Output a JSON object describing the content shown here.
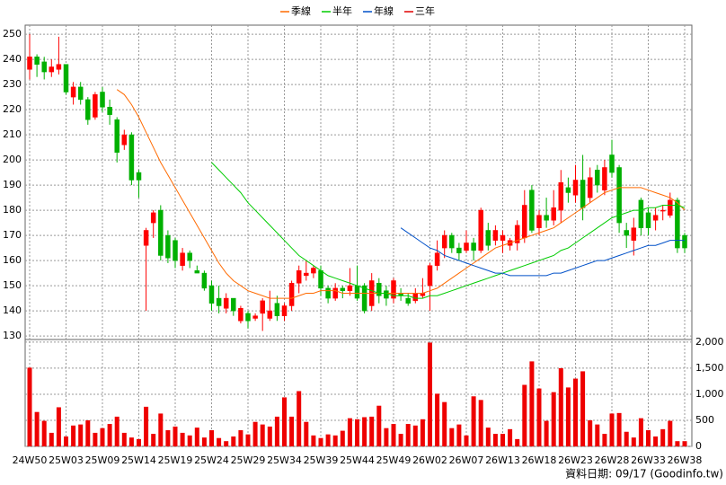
{
  "chart_data": [
    {
      "type": "candlestick",
      "open": [
        236,
        241,
        239,
        235,
        236,
        238,
        225,
        229,
        224,
        217,
        227,
        221,
        216,
        206,
        210,
        195,
        166,
        175,
        180,
        170,
        168,
        158,
        163,
        156,
        155,
        150,
        145,
        141,
        145,
        136,
        139,
        137,
        139,
        137,
        143,
        138,
        142,
        151,
        154,
        155,
        156,
        149,
        145,
        149,
        148,
        150,
        150,
        142,
        151,
        148,
        145,
        147,
        145,
        144,
        146,
        150,
        158,
        165,
        170,
        165,
        164,
        167,
        164,
        172,
        168,
        168,
        166,
        167,
        169,
        188,
        173,
        178,
        176,
        180,
        189,
        186,
        192,
        185,
        196,
        188,
        202,
        197,
        172,
        168,
        184,
        179,
        176,
        180,
        178,
        184,
        170
      ],
      "high": [
        250,
        242,
        241,
        240,
        249,
        238,
        231,
        231,
        225,
        227,
        229,
        224,
        217,
        212,
        211,
        196,
        173,
        180,
        182,
        172,
        169,
        165,
        164,
        158,
        156,
        152,
        150,
        147,
        145,
        142,
        140,
        139,
        145,
        148,
        146,
        143,
        152,
        158,
        160,
        158,
        158,
        150,
        151,
        150,
        157,
        158,
        151,
        155,
        153,
        150,
        153,
        149,
        147,
        149,
        153,
        159,
        168,
        172,
        171,
        167,
        172,
        169,
        181,
        175,
        174,
        172,
        169,
        176,
        188,
        190,
        180,
        185,
        188,
        196,
        193,
        198,
        202,
        197,
        198,
        200,
        208,
        198,
        175,
        177,
        185,
        181,
        181,
        182,
        187,
        185,
        171
      ],
      "low": [
        232,
        233,
        232,
        233,
        234,
        226,
        222,
        222,
        214,
        216,
        219,
        214,
        199,
        204,
        190,
        185,
        140,
        169,
        160,
        159,
        157,
        156,
        157,
        155,
        148,
        140,
        139,
        139,
        138,
        135,
        133,
        136,
        132,
        136,
        136,
        136,
        140,
        147,
        152,
        153,
        146,
        143,
        144,
        145,
        146,
        144,
        139,
        140,
        143,
        142,
        143,
        144,
        142,
        143,
        145,
        140,
        156,
        161,
        163,
        160,
        163,
        160,
        163,
        164,
        166,
        163,
        164,
        164,
        167,
        171,
        170,
        173,
        174,
        175,
        183,
        183,
        176,
        183,
        187,
        186,
        193,
        171,
        165,
        162,
        170,
        170,
        172,
        176,
        177,
        163,
        163
      ],
      "close": [
        241,
        238,
        235,
        237,
        238,
        227,
        229,
        224,
        216,
        226,
        221,
        218,
        203,
        210,
        192,
        192,
        172,
        179,
        162,
        161,
        160,
        163,
        160,
        155,
        149,
        143,
        142,
        145,
        140,
        141,
        136,
        138,
        144,
        140,
        138,
        142,
        151,
        156,
        155,
        157,
        149,
        145,
        149,
        148,
        150,
        145,
        140,
        152,
        146,
        145,
        152,
        146,
        143,
        147,
        147,
        158,
        163,
        170,
        165,
        163,
        167,
        164,
        180,
        166,
        172,
        170,
        168,
        174,
        182,
        172,
        178,
        176,
        181,
        191,
        187,
        192,
        181,
        193,
        190,
        197,
        195,
        175,
        170,
        173,
        173,
        173,
        178,
        180,
        184,
        165,
        165
      ],
      "up_color": "#ff0000",
      "down_color": "#00b000",
      "ylim": [
        128.6,
        253.6
      ],
      "yticks": [
        130,
        140,
        150,
        160,
        170,
        180,
        190,
        200,
        210,
        220,
        230,
        240,
        250
      ],
      "grid": true,
      "legend": "top",
      "series": [
        {
          "name": "季線",
          "color": "#ff6a00",
          "values": [
            null,
            null,
            null,
            null,
            null,
            null,
            null,
            null,
            null,
            null,
            null,
            null,
            228,
            226,
            222,
            217,
            211,
            205,
            199,
            194,
            189,
            184,
            179,
            174,
            169,
            164,
            159,
            155,
            152,
            150,
            148,
            147,
            146,
            145,
            145,
            145,
            145,
            146,
            147,
            147,
            148,
            148,
            148,
            147,
            147,
            147,
            147,
            147,
            147,
            147,
            147,
            147,
            147,
            147,
            147,
            148,
            149,
            151,
            153,
            155,
            157,
            159,
            161,
            163,
            165,
            166,
            167,
            168,
            169,
            170,
            171,
            172,
            173,
            175,
            177,
            179,
            181,
            183,
            185,
            187,
            188,
            189,
            189,
            189,
            189,
            188,
            187,
            186,
            185,
            183,
            180
          ]
        },
        {
          "name": "半年",
          "color": "#00cc00",
          "values": [
            null,
            null,
            null,
            null,
            null,
            null,
            null,
            null,
            null,
            null,
            null,
            null,
            null,
            null,
            null,
            null,
            null,
            null,
            null,
            null,
            null,
            null,
            null,
            null,
            null,
            199,
            196,
            193,
            190,
            187,
            183,
            180,
            177,
            174,
            171,
            168,
            165,
            162,
            160,
            158,
            156,
            154,
            153,
            152,
            151,
            150,
            149,
            148,
            147,
            147,
            146,
            146,
            146,
            145,
            145,
            146,
            146,
            147,
            148,
            149,
            150,
            151,
            152,
            153,
            154,
            155,
            156,
            157,
            158,
            159,
            160,
            161,
            162,
            164,
            165,
            167,
            169,
            171,
            173,
            175,
            177,
            178,
            179,
            180,
            180,
            181,
            181,
            182,
            182,
            182,
            181
          ]
        },
        {
          "name": "年線",
          "color": "#0050c8",
          "values": [
            null,
            null,
            null,
            null,
            null,
            null,
            null,
            null,
            null,
            null,
            null,
            null,
            null,
            null,
            null,
            null,
            null,
            null,
            null,
            null,
            null,
            null,
            null,
            null,
            null,
            null,
            null,
            null,
            null,
            null,
            null,
            null,
            null,
            null,
            null,
            null,
            null,
            null,
            null,
            null,
            null,
            null,
            null,
            null,
            null,
            null,
            null,
            null,
            null,
            null,
            null,
            173,
            171,
            169,
            167,
            165,
            164,
            162,
            161,
            160,
            159,
            158,
            157,
            156,
            155,
            155,
            154,
            154,
            154,
            154,
            154,
            154,
            155,
            155,
            156,
            157,
            158,
            159,
            160,
            160,
            161,
            162,
            163,
            164,
            165,
            166,
            166,
            167,
            168,
            168,
            168
          ]
        },
        {
          "name": "三年",
          "color": "#e00000"
        }
      ]
    },
    {
      "type": "bar",
      "categories": [
        "24W50",
        null,
        null,
        null,
        null,
        "25W03",
        null,
        null,
        null,
        null,
        "25W09",
        null,
        null,
        null,
        null,
        "25W14",
        null,
        null,
        null,
        null,
        "25W19",
        null,
        null,
        null,
        null,
        "25W24",
        null,
        null,
        null,
        null,
        "25W29",
        null,
        null,
        null,
        null,
        "25W34",
        null,
        null,
        null,
        null,
        "25W39",
        null,
        null,
        null,
        null,
        "25W44",
        null,
        null,
        null,
        null,
        "25W49",
        null,
        null,
        null,
        null,
        "26W02",
        null,
        null,
        null,
        null,
        "26W07",
        null,
        null,
        null,
        null,
        "26W13",
        null,
        null,
        null,
        null,
        "26W18",
        null,
        null,
        null,
        null,
        "26W23",
        null,
        null,
        null,
        null,
        "26W28",
        null,
        null,
        null,
        null,
        "26W33",
        null,
        null,
        null,
        null,
        "26W38"
      ],
      "values": [
        1510,
        660,
        490,
        260,
        750,
        190,
        400,
        420,
        500,
        260,
        350,
        430,
        570,
        260,
        170,
        140,
        760,
        240,
        630,
        310,
        380,
        260,
        210,
        360,
        170,
        310,
        160,
        100,
        190,
        310,
        230,
        470,
        420,
        380,
        570,
        940,
        570,
        1060,
        470,
        210,
        160,
        230,
        210,
        300,
        540,
        520,
        560,
        570,
        780,
        350,
        430,
        240,
        430,
        400,
        520,
        1990,
        1010,
        850,
        350,
        420,
        210,
        960,
        890,
        360,
        240,
        240,
        330,
        140,
        1180,
        1630,
        1110,
        490,
        1040,
        1500,
        1130,
        1300,
        1440,
        500,
        420,
        240,
        630,
        640,
        280,
        170,
        540,
        310,
        190,
        330,
        490,
        100,
        100
      ],
      "color": "#ee0000",
      "ylim": [
        0,
        2050
      ],
      "yticks": [
        0,
        500,
        {
          "value": 1000,
          "label": "1,000"
        },
        {
          "value": 1500,
          "label": "1,500"
        },
        {
          "value": 2000,
          "label": "2,000"
        }
      ],
      "grid": true
    }
  ],
  "footer": "資料日期: 09/17 (Goodinfo.tw)"
}
